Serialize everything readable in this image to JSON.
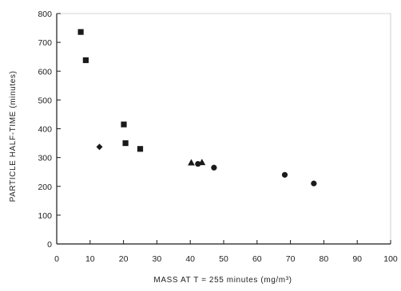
{
  "chart_data": {
    "type": "scatter",
    "xlabel": "MASS AT T = 255 minutes (mg/m³)",
    "ylabel": "PARTICLE HALF-TIME (minutes)",
    "xlim": [
      0,
      100
    ],
    "ylim": [
      0,
      800
    ],
    "xticks": [
      "0",
      "10",
      "20",
      "30",
      "40",
      "50",
      "60",
      "70",
      "80",
      "90",
      "100"
    ],
    "yticks": [
      "0",
      "100",
      "200",
      "300",
      "400",
      "500",
      "600",
      "700",
      "800"
    ],
    "grid": false,
    "colors": {
      "ink": "#1a1a1a"
    },
    "series": [
      {
        "marker": "square",
        "points": [
          {
            "x": 7.2,
            "y": 736
          },
          {
            "x": 8.7,
            "y": 638
          },
          {
            "x": 20.1,
            "y": 415
          },
          {
            "x": 20.6,
            "y": 350
          },
          {
            "x": 25.0,
            "y": 330
          }
        ]
      },
      {
        "marker": "diamond",
        "points": [
          {
            "x": 12.8,
            "y": 337
          }
        ]
      },
      {
        "marker": "triangle",
        "points": [
          {
            "x": 40.3,
            "y": 282
          },
          {
            "x": 43.5,
            "y": 283
          }
        ]
      },
      {
        "marker": "circle",
        "points": [
          {
            "x": 42.3,
            "y": 278
          },
          {
            "x": 47.1,
            "y": 265
          },
          {
            "x": 68.3,
            "y": 240
          },
          {
            "x": 77.0,
            "y": 210
          }
        ]
      }
    ]
  }
}
